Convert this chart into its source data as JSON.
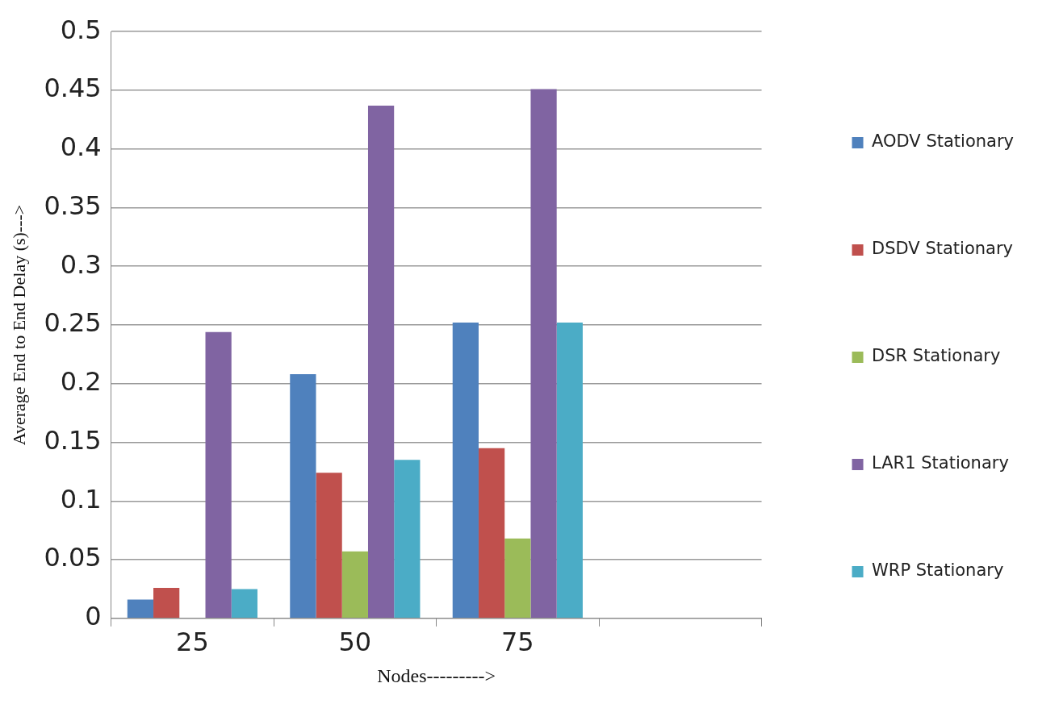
{
  "chart_data": {
    "type": "bar",
    "xlabel": "Nodes--------->",
    "ylabel": "Average End to End Delay (s)--->",
    "categories": [
      "25",
      "50",
      "75",
      null
    ],
    "series": [
      {
        "name": "AODV Stationary",
        "color": "#4f81bd",
        "values": [
          0.016,
          0.208,
          0.252,
          null
        ]
      },
      {
        "name": "DSDV Stationary",
        "color": "#c0504d",
        "values": [
          0.026,
          0.124,
          0.145,
          null
        ]
      },
      {
        "name": "DSR Stationary",
        "color": "#9bbb59",
        "values": [
          null,
          0.057,
          0.068,
          null
        ]
      },
      {
        "name": "LAR1 Stationary",
        "color": "#8064a2",
        "values": [
          0.244,
          0.437,
          0.451,
          null
        ]
      },
      {
        "name": "WRP Stationary",
        "color": "#4bacc6",
        "values": [
          0.025,
          0.135,
          0.252,
          null
        ]
      }
    ],
    "ylim": [
      0,
      0.5
    ],
    "yticks": [
      0,
      0.05,
      0.1,
      0.15,
      0.2,
      0.25,
      0.3,
      0.35,
      0.4,
      0.45,
      0.5
    ],
    "grid": "y",
    "legend": "right"
  }
}
